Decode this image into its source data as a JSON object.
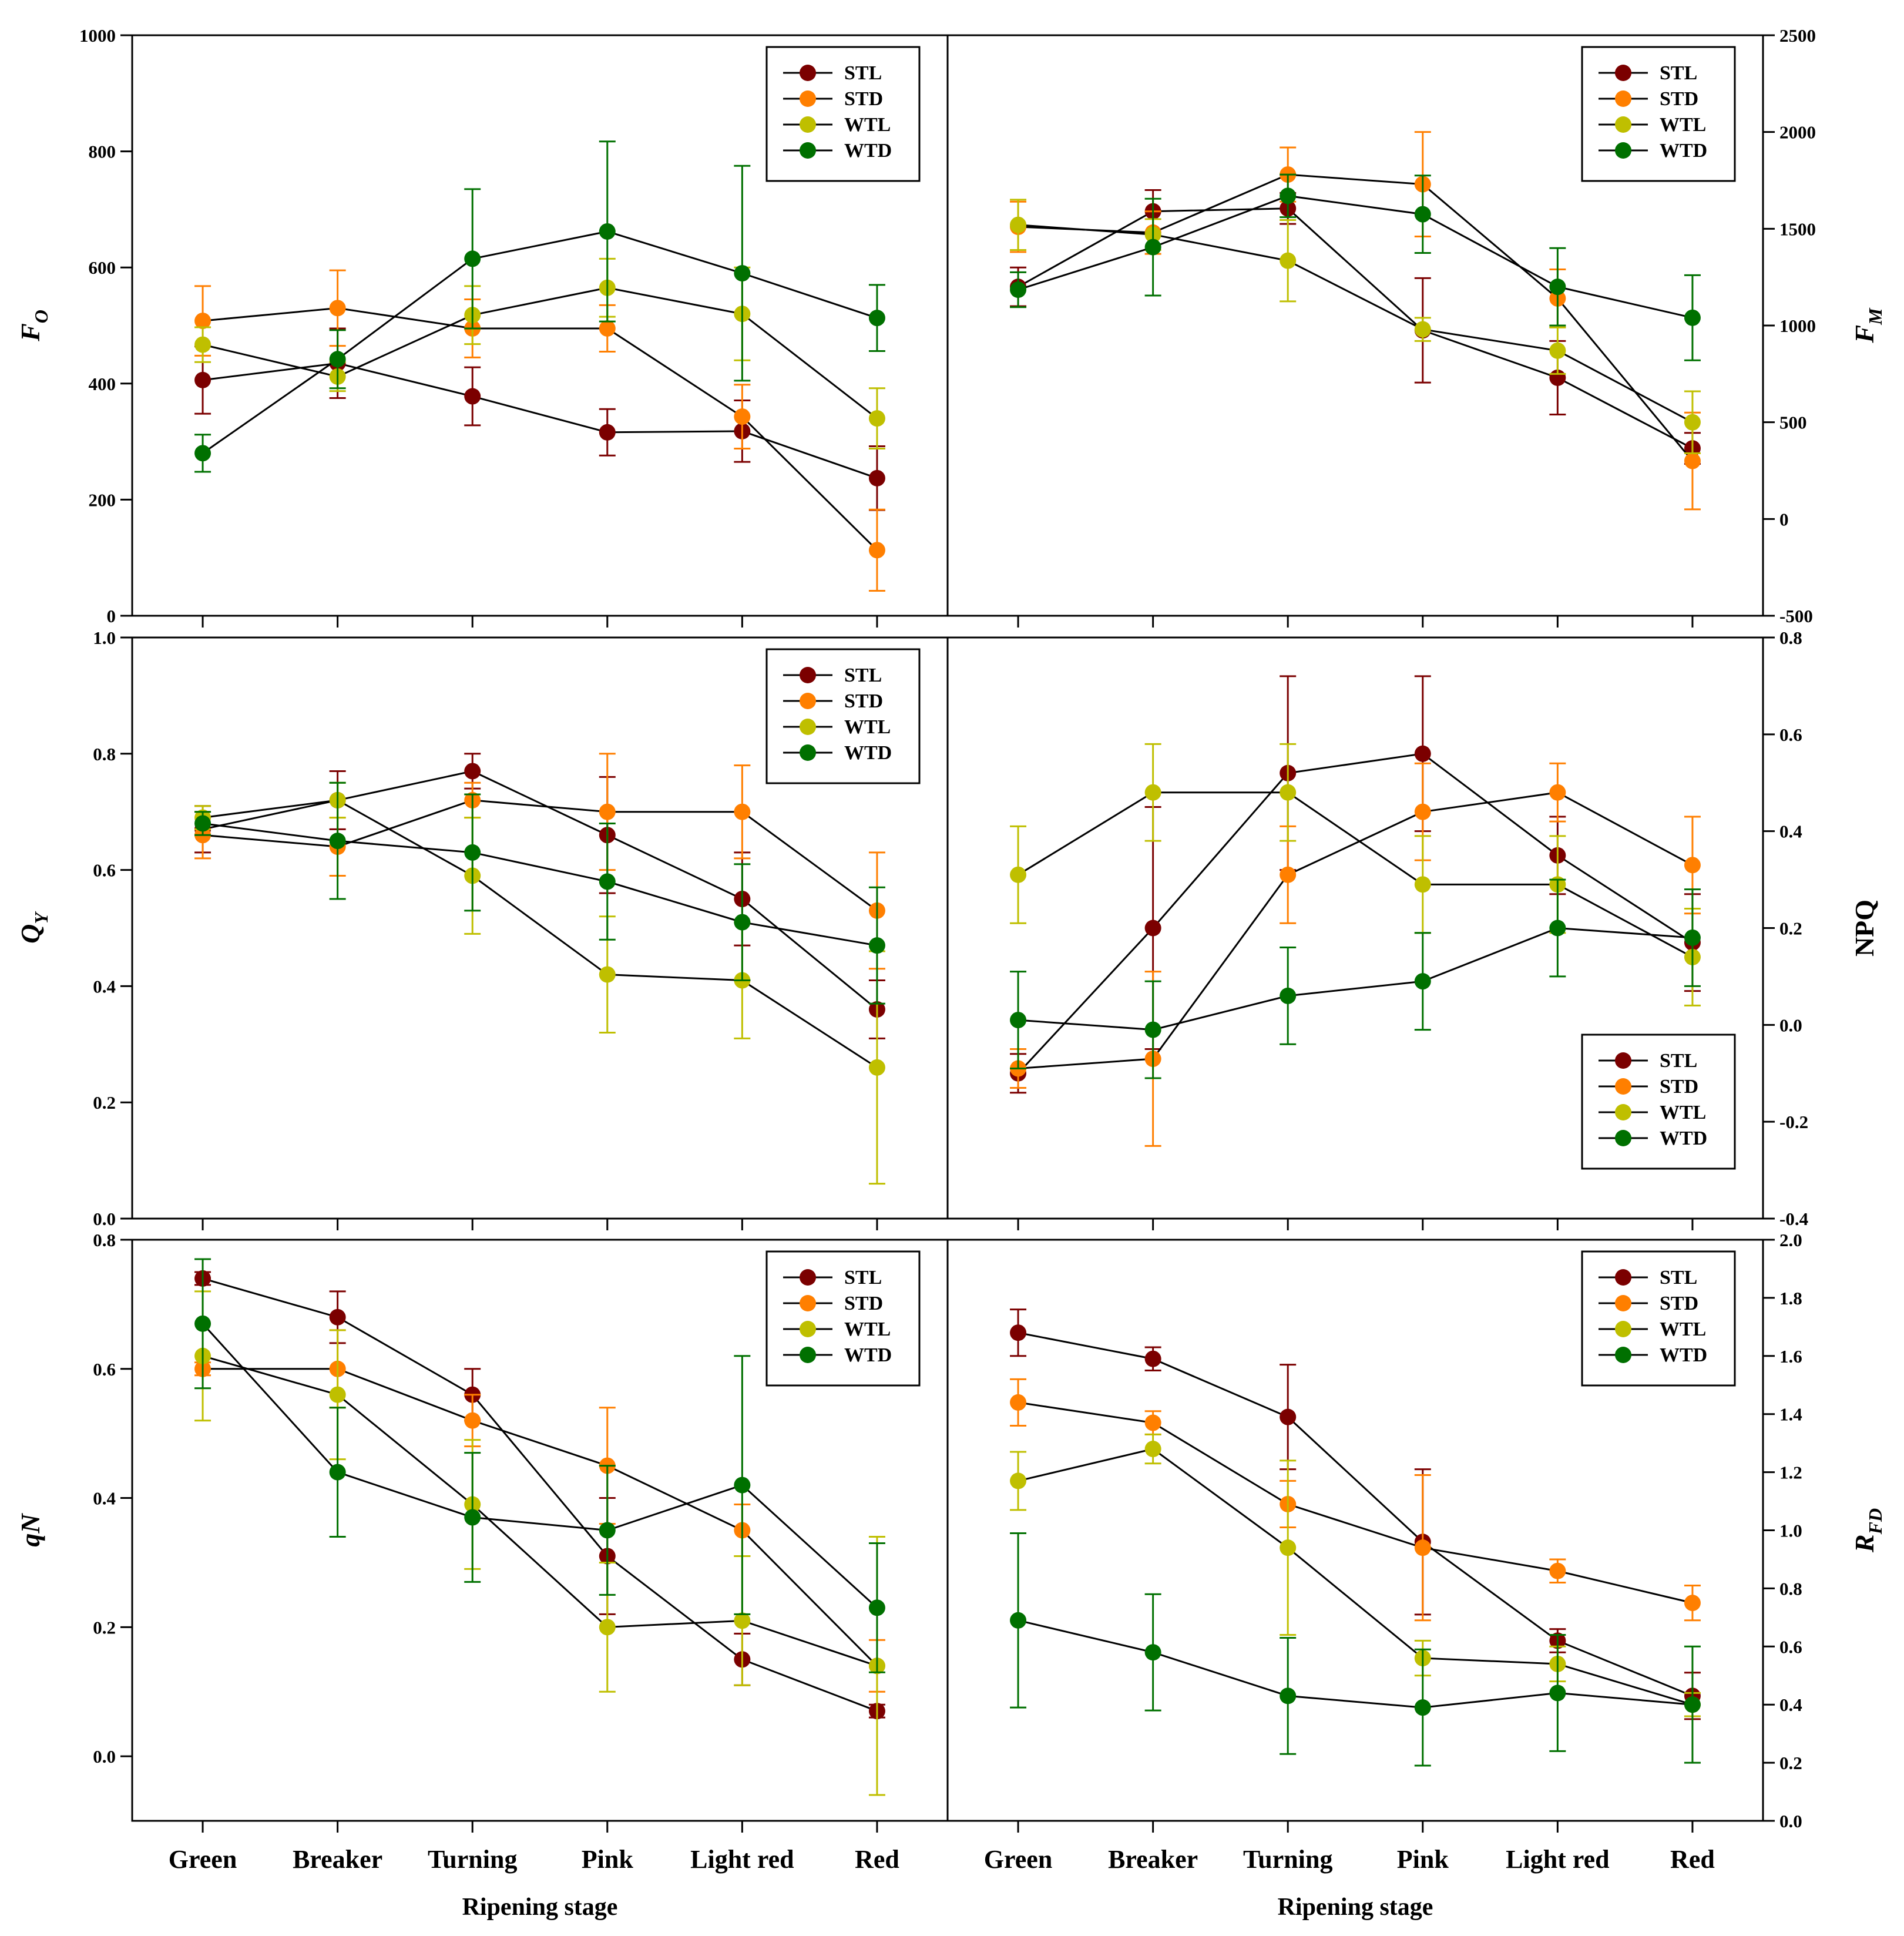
{
  "colors": {
    "STL": "#7B0000",
    "STD": "#FF7F00",
    "WTL": "#BFBF00",
    "WTD": "#007000",
    "line": "#000000"
  },
  "chart_data": [
    {
      "id": "fo",
      "type": "line",
      "ylabel": "F",
      "ylabel_sub": "O",
      "xlabel": "",
      "ylim": [
        0,
        1000
      ],
      "yticks": [
        "0",
        "200",
        "400",
        "600",
        "800",
        "1000"
      ],
      "categories": [
        "Green",
        "Breaker",
        "Turning",
        "Pink",
        "Light red",
        "Red"
      ],
      "legend": {
        "position": "top-right",
        "entries": [
          "STL",
          "STD",
          "WTL",
          "WTD"
        ]
      },
      "series": [
        {
          "name": "STL",
          "values": [
            406,
            435,
            378,
            316,
            318,
            237
          ],
          "errors": [
            58,
            60,
            50,
            40,
            53,
            55
          ]
        },
        {
          "name": "STD",
          "values": [
            508,
            530,
            495,
            495,
            343,
            113
          ],
          "errors": [
            60,
            65,
            50,
            40,
            55,
            70
          ]
        },
        {
          "name": "WTL",
          "values": [
            467,
            412,
            518,
            565,
            520,
            340
          ],
          "errors": [
            30,
            25,
            50,
            50,
            80,
            52
          ]
        },
        {
          "name": "WTD",
          "values": [
            280,
            442,
            615,
            662,
            590,
            513
          ],
          "errors": [
            32,
            50,
            120,
            155,
            185,
            57
          ]
        }
      ]
    },
    {
      "id": "fm",
      "type": "line",
      "ylabel": "F",
      "ylabel_sub": "M",
      "xlabel": "",
      "ylim": [
        -500,
        2500
      ],
      "yticks": [
        "-500",
        "0",
        "500",
        "1000",
        "1500",
        "2000",
        "2500"
      ],
      "categories": [
        "Green",
        "Breaker",
        "Turning",
        "Pink",
        "Light red",
        "Red"
      ],
      "legend": {
        "position": "top-right",
        "entries": [
          "STL",
          "STD",
          "WTL",
          "WTD"
        ]
      },
      "series": [
        {
          "name": "STL",
          "values": [
            1200,
            1590,
            1605,
            975,
            730,
            365
          ],
          "errors": [
            100,
            110,
            80,
            270,
            190,
            80
          ]
        },
        {
          "name": "STD",
          "values": [
            1510,
            1480,
            1780,
            1730,
            1140,
            300
          ],
          "errors": [
            130,
            110,
            140,
            270,
            150,
            250
          ]
        },
        {
          "name": "WTL",
          "values": [
            1520,
            1470,
            1335,
            980,
            870,
            500
          ],
          "errors": [
            130,
            80,
            210,
            60,
            120,
            160
          ]
        },
        {
          "name": "WTD",
          "values": [
            1185,
            1405,
            1670,
            1575,
            1200,
            1040
          ],
          "errors": [
            90,
            250,
            110,
            200,
            200,
            220
          ]
        }
      ]
    },
    {
      "id": "qy",
      "type": "line",
      "ylabel": "Q",
      "ylabel_sub": "Y",
      "xlabel": "",
      "ylim": [
        0,
        1.0
      ],
      "yticks": [
        "0.0",
        "0.2",
        "0.4",
        "0.6",
        "0.8",
        "1.0"
      ],
      "categories": [
        "Green",
        "Breaker",
        "Turning",
        "Pink",
        "Light red",
        "Red"
      ],
      "legend": {
        "position": "top-right",
        "entries": [
          "STL",
          "STD",
          "WTL",
          "WTD"
        ]
      },
      "series": [
        {
          "name": "STL",
          "values": [
            0.67,
            0.72,
            0.77,
            0.66,
            0.55,
            0.36
          ],
          "errors": [
            0.04,
            0.05,
            0.03,
            0.1,
            0.08,
            0.05
          ]
        },
        {
          "name": "STD",
          "values": [
            0.66,
            0.64,
            0.72,
            0.7,
            0.7,
            0.53
          ],
          "errors": [
            0.04,
            0.05,
            0.03,
            0.1,
            0.08,
            0.1
          ]
        },
        {
          "name": "WTL",
          "values": [
            0.69,
            0.72,
            0.59,
            0.42,
            0.41,
            0.26
          ],
          "errors": [
            0.02,
            0.03,
            0.1,
            0.1,
            0.1,
            0.2
          ]
        },
        {
          "name": "WTD",
          "values": [
            0.68,
            0.65,
            0.63,
            0.58,
            0.51,
            0.47
          ],
          "errors": [
            0.02,
            0.1,
            0.1,
            0.1,
            0.1,
            0.1
          ]
        }
      ]
    },
    {
      "id": "npq",
      "type": "line",
      "ylabel": "NPQ",
      "ylabel_sub": "",
      "xlabel": "",
      "ylim": [
        -0.4,
        0.8
      ],
      "yticks": [
        "-0.4",
        "-0.2",
        "0.0",
        "0.2",
        "0.4",
        "0.6",
        "0.8"
      ],
      "categories": [
        "Green",
        "Breaker",
        "Turning",
        "Pink",
        "Light red",
        "Red"
      ],
      "legend": {
        "position": "bottom-right",
        "entries": [
          "STL",
          "STD",
          "WTL",
          "WTD"
        ]
      },
      "series": [
        {
          "name": "STL",
          "values": [
            -0.1,
            0.2,
            0.52,
            0.56,
            0.35,
            0.17
          ],
          "errors": [
            0.04,
            0.25,
            0.2,
            0.16,
            0.08,
            0.1
          ]
        },
        {
          "name": "STD",
          "values": [
            -0.09,
            -0.07,
            0.31,
            0.44,
            0.48,
            0.33
          ],
          "errors": [
            0.04,
            0.18,
            0.1,
            0.1,
            0.06,
            0.1
          ]
        },
        {
          "name": "WTL",
          "values": [
            0.31,
            0.48,
            0.48,
            0.29,
            0.29,
            0.14
          ],
          "errors": [
            0.1,
            0.1,
            0.1,
            0.1,
            0.1,
            0.1
          ]
        },
        {
          "name": "WTD",
          "values": [
            0.01,
            -0.01,
            0.06,
            0.09,
            0.2,
            0.18
          ],
          "errors": [
            0.1,
            0.1,
            0.1,
            0.1,
            0.1,
            0.1
          ]
        }
      ]
    },
    {
      "id": "qn",
      "type": "line",
      "ylabel": "qN",
      "ylabel_sub": "",
      "xlabel": "Ripening stage",
      "ylim": [
        -0.1,
        0.8
      ],
      "yticks": [
        "0.0",
        "0.2",
        "0.4",
        "0.6",
        "0.8"
      ],
      "categories": [
        "Green",
        "Breaker",
        "Turning",
        "Pink",
        "Light red",
        "Red"
      ],
      "legend": {
        "position": "top-right",
        "entries": [
          "STL",
          "STD",
          "WTL",
          "WTD"
        ]
      },
      "series": [
        {
          "name": "STL",
          "values": [
            0.74,
            0.68,
            0.56,
            0.31,
            0.15,
            0.07
          ],
          "errors": [
            0.01,
            0.04,
            0.04,
            0.09,
            0.04,
            0.01
          ]
        },
        {
          "name": "STD",
          "values": [
            0.6,
            0.6,
            0.52,
            0.45,
            0.35,
            0.14
          ],
          "errors": [
            0.01,
            0.06,
            0.04,
            0.09,
            0.04,
            0.04
          ]
        },
        {
          "name": "WTL",
          "values": [
            0.62,
            0.56,
            0.39,
            0.2,
            0.21,
            0.14
          ],
          "errors": [
            0.1,
            0.1,
            0.1,
            0.1,
            0.1,
            0.2
          ]
        },
        {
          "name": "WTD",
          "values": [
            0.67,
            0.44,
            0.37,
            0.35,
            0.42,
            0.23
          ],
          "errors": [
            0.1,
            0.1,
            0.1,
            0.1,
            0.2,
            0.1
          ]
        }
      ]
    },
    {
      "id": "rfd",
      "type": "line",
      "ylabel": "R",
      "ylabel_sub": "FD",
      "xlabel": "Ripening stage",
      "ylim": [
        0,
        2.0
      ],
      "yticks": [
        "0.0",
        "0.2",
        "0.4",
        "0.6",
        "0.8",
        "1.0",
        "1.2",
        "1.4",
        "1.6",
        "1.8",
        "2.0"
      ],
      "categories": [
        "Green",
        "Breaker",
        "Turning",
        "Pink",
        "Light red",
        "Red"
      ],
      "legend": {
        "position": "top-right",
        "entries": [
          "STL",
          "STD",
          "WTL",
          "WTD"
        ]
      },
      "series": [
        {
          "name": "STL",
          "values": [
            1.68,
            1.59,
            1.39,
            0.96,
            0.62,
            0.43
          ],
          "errors": [
            0.08,
            0.04,
            0.18,
            0.25,
            0.04,
            0.08
          ]
        },
        {
          "name": "STD",
          "values": [
            1.44,
            1.37,
            1.09,
            0.94,
            0.86,
            0.75
          ],
          "errors": [
            0.08,
            0.04,
            0.08,
            0.25,
            0.04,
            0.06
          ]
        },
        {
          "name": "WTL",
          "values": [
            1.17,
            1.28,
            0.94,
            0.56,
            0.54,
            0.4
          ],
          "errors": [
            0.1,
            0.05,
            0.3,
            0.06,
            0.06,
            0.04
          ]
        },
        {
          "name": "WTD",
          "values": [
            0.69,
            0.58,
            0.43,
            0.39,
            0.44,
            0.4
          ],
          "errors": [
            0.3,
            0.2,
            0.2,
            0.2,
            0.2,
            0.2
          ]
        }
      ]
    }
  ]
}
